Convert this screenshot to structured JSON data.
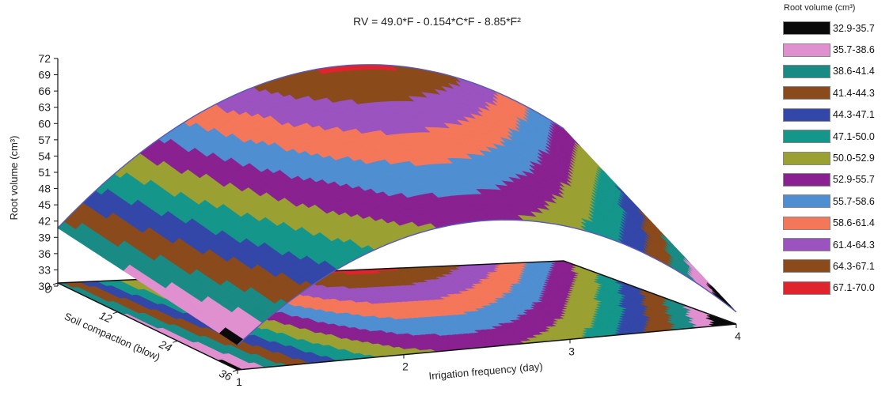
{
  "chart_data": {
    "type": "surface3d",
    "title": "RV = 49.0*F - 0.154*C*F - 8.85*F²",
    "zlabel": "Root volume (cm³)",
    "xlabel": "Irrigation frequency (day)",
    "ylabel": "Soil compaction (blow)",
    "z_ticks": [
      "72",
      "69",
      "66",
      "63",
      "60",
      "57",
      "54",
      "51",
      "48",
      "45",
      "42",
      "39",
      "36",
      "33",
      "30"
    ],
    "x_ticks": [
      "1",
      "2",
      "3",
      "4"
    ],
    "y_ticks": [
      "0",
      "12",
      "24",
      "36"
    ],
    "zlim": [
      30,
      72
    ],
    "xlim": [
      1,
      4
    ],
    "ylim": [
      0,
      36
    ],
    "legend_title": "Root volume (cm³)",
    "legend": [
      {
        "label": "32.9-35.7",
        "color": "#0a0a0a"
      },
      {
        "label": "35.7-38.6",
        "color": "#e08fcf"
      },
      {
        "label": "38.6-41.4",
        "color": "#1a8a84"
      },
      {
        "label": "41.4-44.3",
        "color": "#8a4a1c"
      },
      {
        "label": "44.3-47.1",
        "color": "#3347a8"
      },
      {
        "label": "47.1-50.0",
        "color": "#14968a"
      },
      {
        "label": "50.0-52.9",
        "color": "#9aa032"
      },
      {
        "label": "52.9-55.7",
        "color": "#8a2190"
      },
      {
        "label": "55.7-58.6",
        "color": "#4e8ed1"
      },
      {
        "label": "58.6-61.4",
        "color": "#f4775a"
      },
      {
        "label": "61.4-64.3",
        "color": "#9a53bf"
      },
      {
        "label": "64.3-67.1",
        "color": "#8a4a1a"
      },
      {
        "label": "67.1-70.0",
        "color": "#e0242e"
      }
    ]
  }
}
